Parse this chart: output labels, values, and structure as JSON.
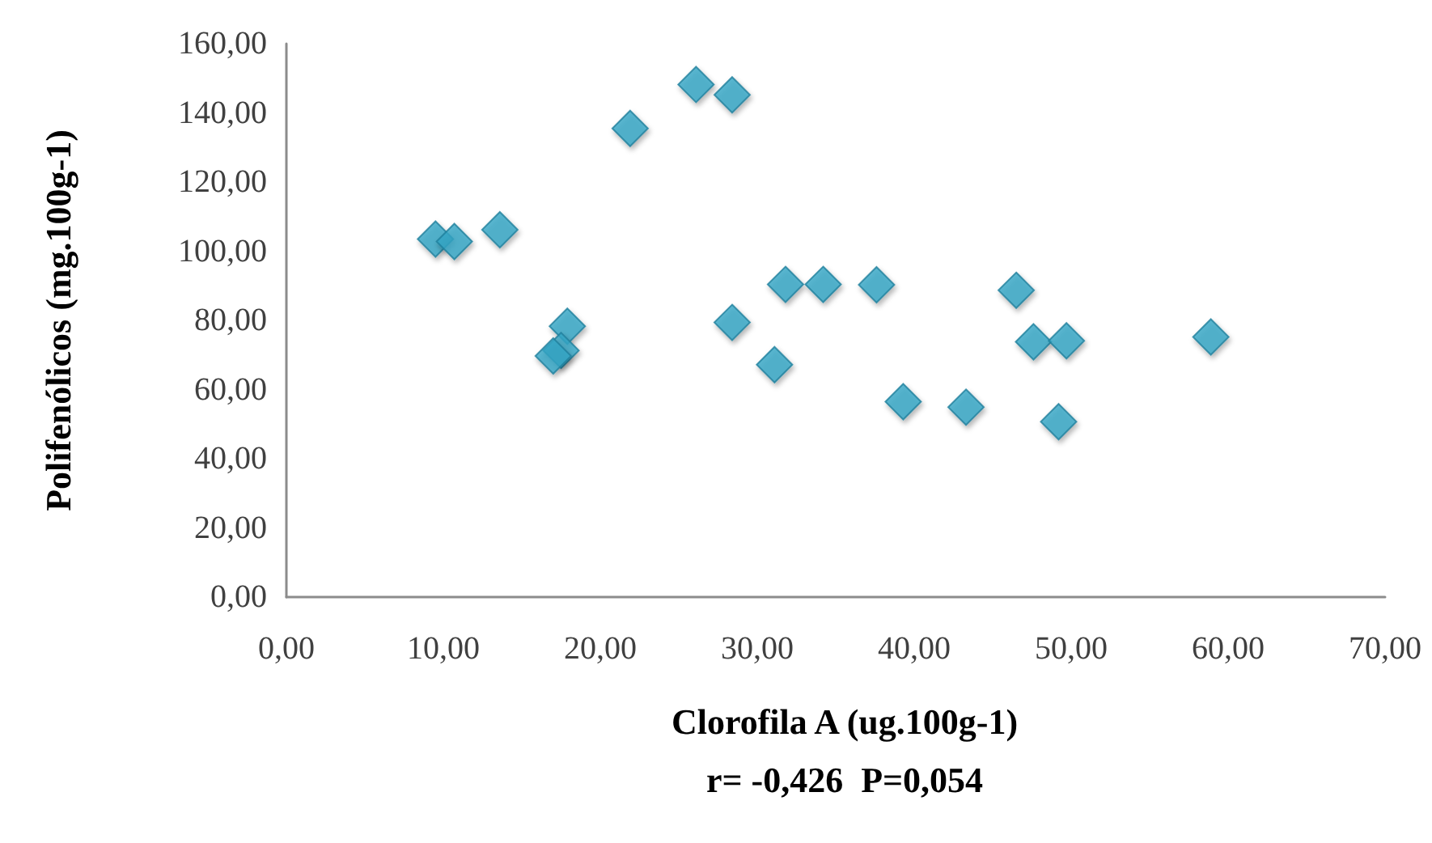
{
  "chart_data": {
    "type": "scatter",
    "xlabel": "Clorofila A (ug.100g-1)",
    "ylabel": "Polifenólicos (mg.100g-1)",
    "annotations": [
      "r= -0,426  P=0,054"
    ],
    "x": [
      9.5,
      10.7,
      13.6,
      21.9,
      26.1,
      28.4,
      17.9,
      17.5,
      17.0,
      28.4,
      31.1,
      31.8,
      34.2,
      37.6,
      39.3,
      43.3,
      46.5,
      47.6,
      49.7,
      49.2,
      58.9
    ],
    "series": [
      {
        "color": "#35a6c6",
        "values": [
          103.5,
          102.8,
          106.2,
          135.5,
          148.2,
          145.2,
          78.3,
          71.3,
          69.7,
          79.4,
          67.2,
          90.4,
          90.4,
          90.3,
          56.5,
          54.9,
          88.7,
          73.8,
          74.1,
          50.7,
          75.2
        ]
      }
    ],
    "xlim": [
      0,
      70
    ],
    "xticks": [
      {
        "value": 0,
        "label": "0,00"
      },
      {
        "value": 10,
        "label": "10,00"
      },
      {
        "value": 20,
        "label": "20,00"
      },
      {
        "value": 30,
        "label": "30,00"
      },
      {
        "value": 40,
        "label": "40,00"
      },
      {
        "value": 50,
        "label": "50,00"
      },
      {
        "value": 60,
        "label": "60,00"
      },
      {
        "value": 70,
        "label": "70,00"
      }
    ],
    "ylim": [
      0,
      160
    ],
    "yticks": [
      {
        "value": 0,
        "label": "0,00"
      },
      {
        "value": 20,
        "label": "20,00"
      },
      {
        "value": 40,
        "label": "40,00"
      },
      {
        "value": 60,
        "label": "60,00"
      },
      {
        "value": 80,
        "label": "80,00"
      },
      {
        "value": 100,
        "label": "100,00"
      },
      {
        "value": 120,
        "label": "120,00"
      },
      {
        "value": 140,
        "label": "140,00"
      },
      {
        "value": 160,
        "label": "160,00"
      }
    ],
    "marker": "diamond"
  }
}
